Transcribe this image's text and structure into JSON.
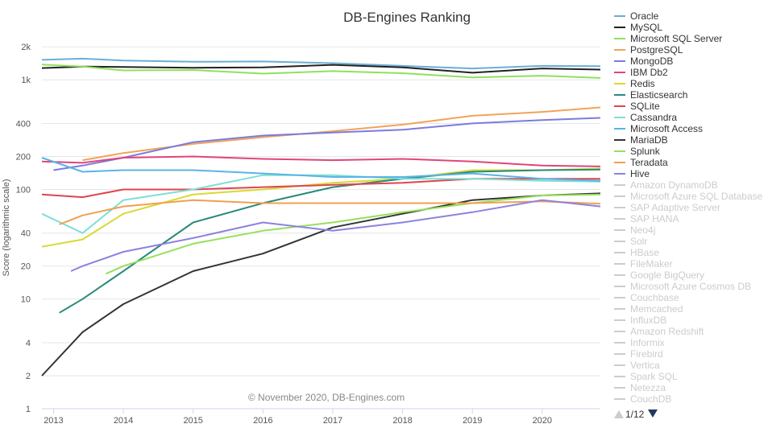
{
  "chart_data": {
    "type": "line",
    "title": "DB-Engines Ranking",
    "ylabel": "Score (logarithmic scale)",
    "yscale": "log",
    "ylim": [
      1,
      2500
    ],
    "xlim": [
      "2012-11",
      "2020-11"
    ],
    "y_ticks": [
      1,
      2,
      4,
      10,
      20,
      40,
      100,
      200,
      400,
      1000,
      2000
    ],
    "y_tick_labels": [
      "1",
      "2",
      "4",
      "10",
      "20",
      "40",
      "100",
      "200",
      "400",
      "1k",
      "2k"
    ],
    "x_ticks": [
      "2013",
      "2014",
      "2015",
      "2016",
      "2017",
      "2018",
      "2019",
      "2020"
    ],
    "credit": "© November 2020, DB-Engines.com",
    "legend_position": "right",
    "legend_nav": "1/12",
    "series": [
      {
        "name": "Oracle",
        "color": "#6baed6",
        "x": [
          "2012-11",
          "2013-06",
          "2014-01",
          "2015-01",
          "2016-01",
          "2017-01",
          "2018-01",
          "2019-01",
          "2020-01",
          "2020-11"
        ],
        "values": [
          1520,
          1560,
          1500,
          1460,
          1470,
          1420,
          1340,
          1270,
          1340,
          1330
        ]
      },
      {
        "name": "MySQL",
        "color": "#222222",
        "x": [
          "2012-11",
          "2013-06",
          "2014-01",
          "2015-01",
          "2016-01",
          "2017-01",
          "2018-01",
          "2019-01",
          "2020-01",
          "2020-11"
        ],
        "values": [
          1280,
          1320,
          1310,
          1290,
          1300,
          1370,
          1300,
          1160,
          1270,
          1240
        ]
      },
      {
        "name": "Microsoft SQL Server",
        "color": "#90e05c",
        "x": [
          "2012-11",
          "2013-06",
          "2014-01",
          "2015-01",
          "2016-01",
          "2017-01",
          "2018-01",
          "2019-01",
          "2020-01",
          "2020-11"
        ],
        "values": [
          1380,
          1320,
          1220,
          1230,
          1140,
          1200,
          1150,
          1050,
          1090,
          1040
        ]
      },
      {
        "name": "PostgreSQL",
        "color": "#f0a35a",
        "x": [
          "2013-06",
          "2014-01",
          "2015-01",
          "2016-01",
          "2017-01",
          "2018-01",
          "2019-01",
          "2020-01",
          "2020-11"
        ],
        "values": [
          185,
          215,
          260,
          300,
          340,
          390,
          470,
          510,
          560
        ]
      },
      {
        "name": "MongoDB",
        "color": "#7b7be0",
        "x": [
          "2013-01",
          "2013-06",
          "2014-01",
          "2015-01",
          "2016-01",
          "2017-01",
          "2018-01",
          "2019-01",
          "2020-01",
          "2020-11"
        ],
        "values": [
          150,
          165,
          195,
          270,
          310,
          330,
          350,
          400,
          430,
          450
        ]
      },
      {
        "name": "IBM Db2",
        "color": "#e0457b",
        "x": [
          "2012-11",
          "2013-06",
          "2014-01",
          "2015-01",
          "2016-01",
          "2017-01",
          "2018-01",
          "2019-01",
          "2020-01",
          "2020-11"
        ],
        "values": [
          180,
          175,
          195,
          200,
          190,
          185,
          190,
          180,
          165,
          162
        ]
      },
      {
        "name": "Redis",
        "color": "#d9d932",
        "x": [
          "2012-11",
          "2013-06",
          "2014-01",
          "2015-01",
          "2016-01",
          "2017-01",
          "2018-01",
          "2019-01",
          "2020-01",
          "2020-11"
        ],
        "values": [
          30,
          35,
          60,
          90,
          100,
          115,
          125,
          150,
          150,
          155
        ]
      },
      {
        "name": "Elasticsearch",
        "color": "#2a8a7a",
        "x": [
          "2013-02",
          "2013-06",
          "2014-01",
          "2015-01",
          "2016-01",
          "2017-01",
          "2018-01",
          "2019-01",
          "2020-01",
          "2020-11"
        ],
        "values": [
          7.5,
          10,
          18,
          50,
          75,
          105,
          125,
          145,
          150,
          152
        ]
      },
      {
        "name": "SQLite",
        "color": "#e0444e",
        "x": [
          "2012-11",
          "2013-06",
          "2014-01",
          "2015-01",
          "2016-01",
          "2017-01",
          "2018-01",
          "2019-01",
          "2020-01",
          "2020-11"
        ],
        "values": [
          90,
          85,
          100,
          100,
          105,
          110,
          115,
          125,
          125,
          125
        ]
      },
      {
        "name": "Cassandra",
        "color": "#7ee0d6",
        "x": [
          "2012-11",
          "2013-06",
          "2014-01",
          "2015-01",
          "2016-01",
          "2017-01",
          "2018-01",
          "2019-01",
          "2020-01",
          "2020-11"
        ],
        "values": [
          60,
          40,
          80,
          100,
          135,
          135,
          125,
          125,
          120,
          118
        ]
      },
      {
        "name": "Microsoft Access",
        "color": "#5ab4e6",
        "x": [
          "2012-11",
          "2013-06",
          "2014-01",
          "2015-01",
          "2016-01",
          "2017-01",
          "2018-01",
          "2019-01",
          "2020-01",
          "2020-11"
        ],
        "values": [
          195,
          145,
          150,
          150,
          140,
          130,
          130,
          140,
          125,
          120
        ]
      },
      {
        "name": "MariaDB",
        "color": "#333333",
        "x": [
          "2012-11",
          "2013-06",
          "2014-01",
          "2015-01",
          "2016-01",
          "2017-01",
          "2018-01",
          "2019-01",
          "2020-01",
          "2020-11"
        ],
        "values": [
          2,
          5,
          9,
          18,
          26,
          45,
          60,
          80,
          88,
          92
        ]
      },
      {
        "name": "Splunk",
        "color": "#96e05c",
        "x": [
          "2013-10",
          "2014-01",
          "2015-01",
          "2016-01",
          "2017-01",
          "2018-01",
          "2019-01",
          "2020-01",
          "2020-11"
        ],
        "values": [
          17,
          20,
          32,
          42,
          50,
          62,
          75,
          88,
          90
        ]
      },
      {
        "name": "Teradata",
        "color": "#f0a050",
        "x": [
          "2013-02",
          "2013-06",
          "2014-01",
          "2015-01",
          "2016-01",
          "2017-01",
          "2018-01",
          "2019-01",
          "2020-01",
          "2020-11"
        ],
        "values": [
          48,
          58,
          70,
          80,
          75,
          75,
          75,
          75,
          78,
          74
        ]
      },
      {
        "name": "Hive",
        "color": "#8c82e0",
        "x": [
          "2013-04",
          "2013-06",
          "2014-01",
          "2015-01",
          "2016-01",
          "2017-01",
          "2018-01",
          "2019-01",
          "2020-01",
          "2020-11"
        ],
        "values": [
          18,
          20,
          27,
          36,
          50,
          42,
          50,
          62,
          80,
          70
        ]
      }
    ],
    "inactive_legend": [
      "Amazon DynamoDB",
      "Microsoft Azure SQL Database",
      "SAP Adaptive Server",
      "SAP HANA",
      "Neo4j",
      "Solr",
      "HBase",
      "FileMaker",
      "Google BigQuery",
      "Microsoft Azure Cosmos DB",
      "Couchbase",
      "Memcached",
      "InfluxDB",
      "Amazon Redshift",
      "Informix",
      "Firebird",
      "Vertica",
      "Spark SQL",
      "Netezza",
      "CouchDB"
    ]
  }
}
